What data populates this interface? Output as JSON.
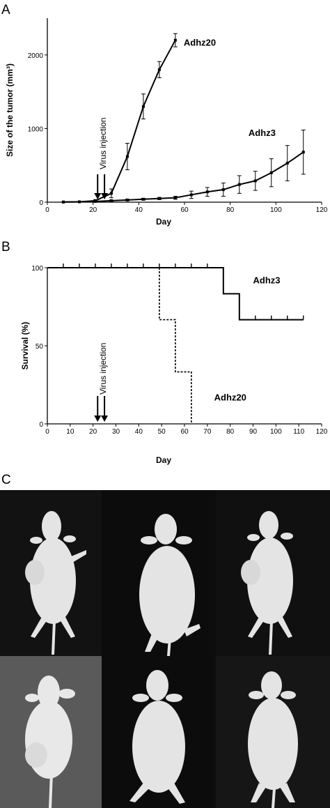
{
  "panels": {
    "A": "A",
    "B": "B",
    "C": "C"
  },
  "chart_data": [
    {
      "type": "line",
      "panel": "A",
      "xlabel": "Day",
      "ylabel": "Size of the tumor (mm³)",
      "xlim": [
        0,
        120
      ],
      "ylim": [
        0,
        2500
      ],
      "xticks": [
        0,
        20,
        40,
        60,
        80,
        100,
        120
      ],
      "yticks": [
        0,
        1000,
        2000
      ],
      "grid": false,
      "annotation": "Virus injection",
      "injection_days": [
        22,
        25
      ],
      "series": [
        {
          "name": "Adhz20",
          "x": [
            7,
            14,
            21,
            28,
            35,
            42,
            49,
            56
          ],
          "y": [
            2,
            5,
            20,
            120,
            620,
            1300,
            1800,
            2200
          ],
          "err": [
            2,
            5,
            15,
            60,
            180,
            170,
            110,
            90
          ]
        },
        {
          "name": "Adhz3",
          "x": [
            7,
            14,
            21,
            28,
            35,
            42,
            49,
            56,
            63,
            70,
            77,
            84,
            91,
            98,
            105,
            112
          ],
          "y": [
            2,
            5,
            10,
            20,
            30,
            40,
            50,
            60,
            100,
            140,
            170,
            240,
            290,
            400,
            530,
            680
          ],
          "err": [
            2,
            3,
            5,
            8,
            10,
            12,
            15,
            20,
            50,
            60,
            90,
            120,
            130,
            190,
            240,
            300
          ]
        }
      ]
    },
    {
      "type": "line",
      "panel": "B",
      "step": true,
      "xlabel": "Day",
      "ylabel": "Survival (%)",
      "xlim": [
        0,
        120
      ],
      "ylim": [
        0,
        100
      ],
      "xticks": [
        0,
        10,
        20,
        30,
        40,
        50,
        60,
        70,
        80,
        90,
        100,
        110,
        120
      ],
      "yticks": [
        0,
        50,
        100
      ],
      "grid": false,
      "annotation": "Virus injection",
      "injection_days": [
        22,
        25
      ],
      "series": [
        {
          "name": "Adhz3",
          "style": "solid",
          "x": [
            0,
            77,
            77,
            84,
            84,
            112
          ],
          "y": [
            100,
            100,
            83.3,
            83.3,
            66.7,
            66.7
          ],
          "censor_x": [
            7,
            14,
            21,
            28,
            35,
            42,
            49,
            56,
            63,
            70,
            91,
            98,
            105,
            112
          ],
          "censor_y": [
            100,
            100,
            100,
            100,
            100,
            100,
            100,
            100,
            100,
            100,
            66.7,
            66.7,
            66.7,
            66.7
          ]
        },
        {
          "name": "Adhz20",
          "style": "dashed",
          "x": [
            49,
            49,
            56,
            56,
            63,
            63
          ],
          "y": [
            100,
            66.7,
            66.7,
            33.3,
            33.3,
            0
          ]
        }
      ]
    }
  ],
  "colors": {
    "ink": "#000000",
    "photo_bg": "#0e0e0e",
    "photo_bg_light": "#5a5a5a",
    "mouse": "#e6e6e6"
  }
}
